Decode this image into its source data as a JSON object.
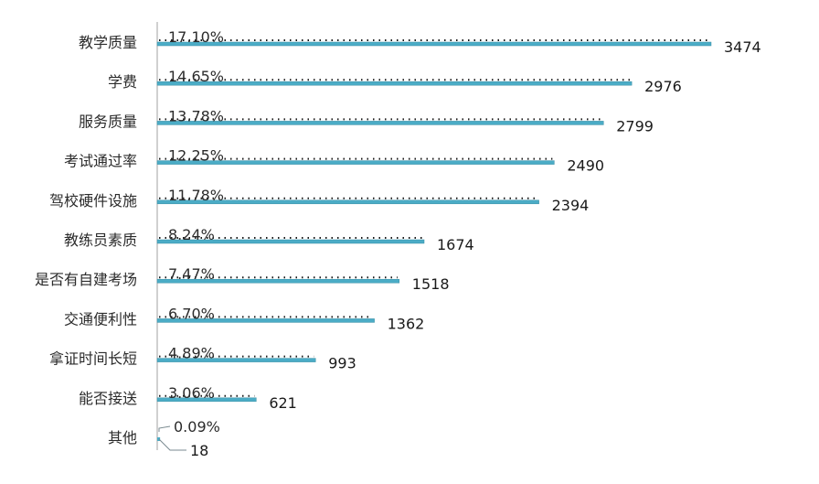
{
  "chart_data": {
    "type": "bar",
    "orientation": "horizontal",
    "categories": [
      "教学质量",
      "学费",
      "服务质量",
      "考试通过率",
      "驾校硬件设施",
      "教练员素质",
      "是否有自建考场",
      "交通便利性",
      "拿证时间长短",
      "能否接送",
      "其他"
    ],
    "values": [
      3474,
      2976,
      2799,
      2490,
      2394,
      1674,
      1518,
      1362,
      993,
      621,
      18
    ],
    "value_labels": [
      "3474",
      "2976",
      "2799",
      "2490",
      "2394",
      "1674",
      "1518",
      "1362",
      "993",
      "621",
      "18"
    ],
    "percentages": [
      "17.10%",
      "14.65%",
      "13.78%",
      "12.25%",
      "11.78%",
      "8.24%",
      "7.47%",
      "6.70%",
      "4.89%",
      "3.06%",
      "0.09%"
    ],
    "title": "",
    "xlabel": "",
    "ylabel": "",
    "xlim": [
      0,
      3474
    ],
    "grid": false,
    "legend": "none",
    "colors": {
      "bar": "#4bacc6",
      "bar_edge": "#3a8fa5",
      "axis": "#a0a0a0",
      "dots": "#1a1a1a",
      "leader": "#7a8a90"
    }
  }
}
